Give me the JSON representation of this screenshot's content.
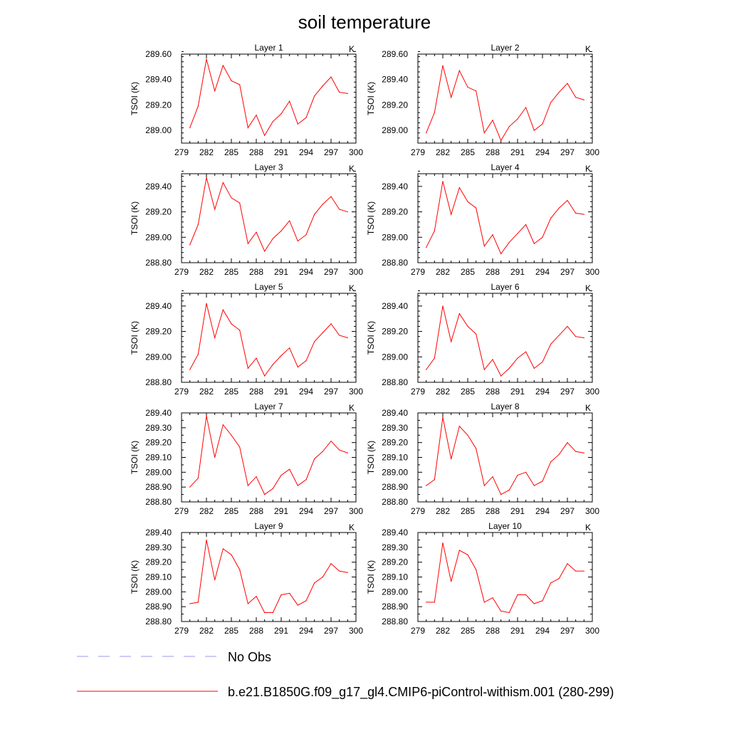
{
  "chart_data": {
    "type": "line",
    "title": "soil temperature",
    "ylabel": "TSOI  (K)",
    "units": "K",
    "x": [
      280,
      281,
      282,
      283,
      284,
      285,
      286,
      287,
      288,
      289,
      290,
      291,
      292,
      293,
      294,
      295,
      296,
      297,
      298,
      299
    ],
    "xlim": [
      279,
      300
    ],
    "xticks": [
      279,
      282,
      285,
      288,
      291,
      294,
      297,
      300
    ],
    "series_color": "#ff0000",
    "panels": [
      {
        "title": "Layer 1",
        "ylim": [
          288.9,
          289.6
        ],
        "yticks": [
          289.0,
          289.2,
          289.4,
          289.6
        ],
        "values": [
          289.02,
          289.19,
          289.56,
          289.31,
          289.51,
          289.39,
          289.36,
          289.02,
          289.12,
          288.96,
          289.07,
          289.13,
          289.23,
          289.05,
          289.1,
          289.27,
          289.35,
          289.42,
          289.3,
          289.29
        ]
      },
      {
        "title": "Layer 2",
        "ylim": [
          288.9,
          289.6
        ],
        "yticks": [
          289.0,
          289.2,
          289.4,
          289.6
        ],
        "values": [
          288.98,
          289.14,
          289.51,
          289.26,
          289.47,
          289.34,
          289.31,
          288.98,
          289.08,
          288.92,
          289.03,
          289.09,
          289.18,
          289.0,
          289.05,
          289.22,
          289.3,
          289.37,
          289.26,
          289.24
        ]
      },
      {
        "title": "Layer 3",
        "ylim": [
          288.8,
          289.5
        ],
        "yticks": [
          288.8,
          289.0,
          289.2,
          289.4
        ],
        "values": [
          288.94,
          289.1,
          289.47,
          289.22,
          289.43,
          289.31,
          289.27,
          288.95,
          289.04,
          288.89,
          288.99,
          289.05,
          289.13,
          288.97,
          289.02,
          289.18,
          289.26,
          289.32,
          289.22,
          289.2
        ]
      },
      {
        "title": "Layer 4",
        "ylim": [
          288.8,
          289.5
        ],
        "yticks": [
          288.8,
          289.0,
          289.2,
          289.4
        ],
        "values": [
          288.92,
          289.05,
          289.44,
          289.18,
          289.39,
          289.28,
          289.23,
          288.93,
          289.02,
          288.87,
          288.96,
          289.03,
          289.1,
          288.95,
          289.0,
          289.15,
          289.23,
          289.29,
          289.19,
          289.18
        ]
      },
      {
        "title": "Layer 5",
        "ylim": [
          288.8,
          289.5
        ],
        "yticks": [
          288.8,
          289.0,
          289.2,
          289.4
        ],
        "values": [
          288.9,
          289.02,
          289.42,
          289.15,
          289.37,
          289.26,
          289.21,
          288.91,
          288.99,
          288.85,
          288.94,
          289.01,
          289.07,
          288.92,
          288.97,
          289.12,
          289.19,
          289.26,
          289.17,
          289.15
        ]
      },
      {
        "title": "Layer 6",
        "ylim": [
          288.8,
          289.5
        ],
        "yticks": [
          288.8,
          289.0,
          289.2,
          289.4
        ],
        "values": [
          288.9,
          288.99,
          289.4,
          289.12,
          289.34,
          289.24,
          289.18,
          288.9,
          288.98,
          288.85,
          288.91,
          288.99,
          289.04,
          288.91,
          288.96,
          289.1,
          289.17,
          289.24,
          289.16,
          289.15
        ]
      },
      {
        "title": "Layer 7",
        "ylim": [
          288.8,
          289.4
        ],
        "yticks": [
          288.8,
          288.9,
          289.0,
          289.1,
          289.2,
          289.3,
          289.4
        ],
        "values": [
          288.9,
          288.96,
          289.38,
          289.1,
          289.32,
          289.25,
          289.17,
          288.91,
          288.97,
          288.85,
          288.89,
          288.98,
          289.02,
          288.91,
          288.95,
          289.09,
          289.14,
          289.21,
          289.15,
          289.13
        ]
      },
      {
        "title": "Layer 8",
        "ylim": [
          288.8,
          289.4
        ],
        "yticks": [
          288.8,
          288.9,
          289.0,
          289.1,
          289.2,
          289.3,
          289.4
        ],
        "values": [
          288.91,
          288.95,
          289.37,
          289.09,
          289.31,
          289.25,
          289.16,
          288.91,
          288.97,
          288.85,
          288.88,
          288.98,
          289.0,
          288.91,
          288.94,
          289.07,
          289.12,
          289.2,
          289.14,
          289.13
        ]
      },
      {
        "title": "Layer 9",
        "ylim": [
          288.8,
          289.4
        ],
        "yticks": [
          288.8,
          288.9,
          289.0,
          289.1,
          289.2,
          289.3,
          289.4
        ],
        "values": [
          288.92,
          288.93,
          289.35,
          289.08,
          289.29,
          289.25,
          289.15,
          288.92,
          288.97,
          288.86,
          288.86,
          288.98,
          288.99,
          288.91,
          288.94,
          289.06,
          289.1,
          289.19,
          289.14,
          289.13
        ]
      },
      {
        "title": "Layer 10",
        "ylim": [
          288.8,
          289.4
        ],
        "yticks": [
          288.8,
          288.9,
          289.0,
          289.1,
          289.2,
          289.3,
          289.4
        ],
        "values": [
          288.93,
          288.93,
          289.33,
          289.07,
          289.28,
          289.25,
          289.15,
          288.93,
          288.96,
          288.87,
          288.86,
          288.98,
          288.98,
          288.92,
          288.94,
          289.06,
          289.09,
          289.19,
          289.14,
          289.14
        ]
      }
    ],
    "legend": [
      {
        "label": "No Obs",
        "style": "dashed",
        "color": "#9999ee"
      },
      {
        "label": "b.e21.B1850G.f09_g17_gl4.CMIP6-piControl-withism.001 (280-299)",
        "style": "solid",
        "color": "#ff0000"
      }
    ]
  }
}
